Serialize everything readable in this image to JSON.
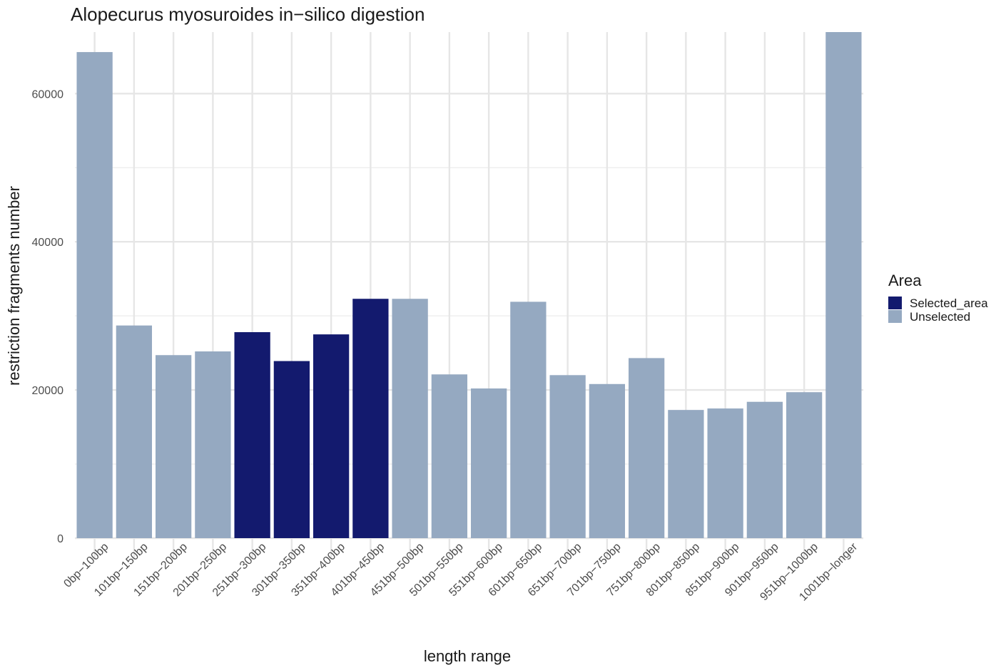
{
  "chart_data": {
    "type": "bar",
    "title": "Alopecurus myosuroides in−silico digestion",
    "xlabel": "length range",
    "ylabel": "restriction fragments number",
    "categories": [
      "0bp−100bp",
      "101bp−150bp",
      "151bp−200bp",
      "201bp−250bp",
      "251bp−300bp",
      "301bp−350bp",
      "351bp−400bp",
      "401bp−450bp",
      "451bp−500bp",
      "501bp−550bp",
      "551bp−600bp",
      "601bp−650bp",
      "651bp−700bp",
      "701bp−750bp",
      "751bp−800bp",
      "801bp−850bp",
      "851bp−900bp",
      "901bp−950bp",
      "951bp–1000bp",
      "1001bp−longer"
    ],
    "values": [
      65600,
      28700,
      24700,
      25200,
      27800,
      23900,
      27500,
      32300,
      32300,
      22100,
      20200,
      31900,
      22000,
      20800,
      24300,
      17300,
      17500,
      18400,
      19700,
      68300
    ],
    "area": [
      "Unselected",
      "Unselected",
      "Unselected",
      "Unselected",
      "Selected_area",
      "Selected_area",
      "Selected_area",
      "Selected_area",
      "Unselected",
      "Unselected",
      "Unselected",
      "Unselected",
      "Unselected",
      "Unselected",
      "Unselected",
      "Unselected",
      "Unselected",
      "Unselected",
      "Unselected",
      "Unselected"
    ],
    "ylim": [
      0,
      68300
    ],
    "yticks": [
      0,
      20000,
      40000,
      60000
    ],
    "grid": true,
    "legend": {
      "title": "Area",
      "position": "right",
      "entries": [
        {
          "name": "Selected_area",
          "color": "#131a6e"
        },
        {
          "name": "Unselected",
          "color": "#95a9c1"
        }
      ]
    }
  }
}
